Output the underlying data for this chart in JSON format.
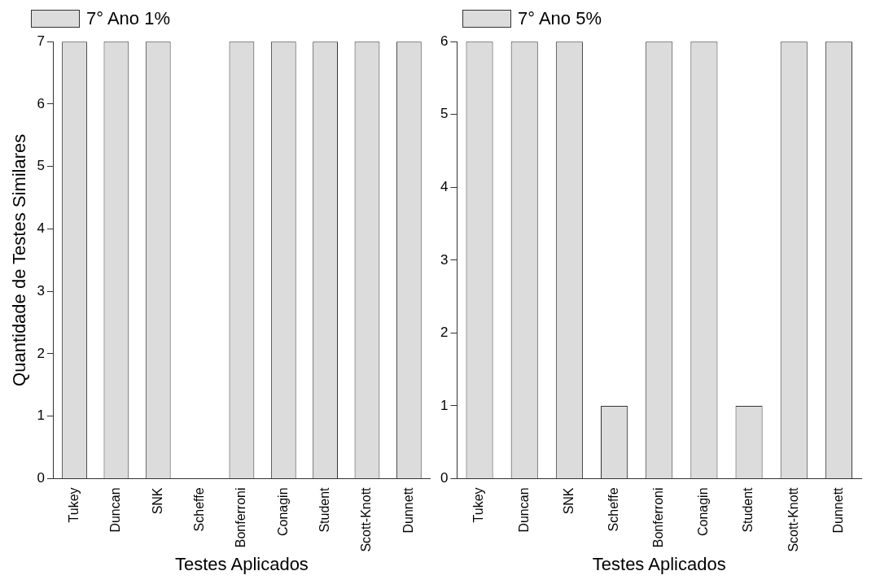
{
  "chart_data": [
    {
      "type": "bar",
      "xlabel": "Testes Aplicados",
      "ylabel": "Quantidade de Testes Similares",
      "categories": [
        "Tukey",
        "Duncan",
        "SNK",
        "Scheffe",
        "Bonferroni",
        "Conagin",
        "Student",
        "Scott-Knott",
        "Dunnett"
      ],
      "series": [
        {
          "name": "7° Ano 1%",
          "color": "#dcdcdc",
          "values": [
            7,
            7,
            7,
            0,
            7,
            7,
            7,
            7,
            7
          ]
        }
      ],
      "ylim": [
        0,
        7
      ],
      "yticks": [
        0,
        1,
        2,
        3,
        4,
        5,
        6,
        7
      ],
      "grid": false,
      "legend": "top left"
    },
    {
      "type": "bar",
      "xlabel": "Testes Aplicados",
      "categories": [
        "Tukey",
        "Duncan",
        "SNK",
        "Scheffe",
        "Bonferroni",
        "Conagin",
        "Student",
        "Scott-Knott",
        "Dunnett"
      ],
      "series": [
        {
          "name": "7° Ano 5%",
          "color": "#dcdcdc",
          "values": [
            6,
            6,
            6,
            1,
            6,
            6,
            1,
            6,
            6
          ]
        }
      ],
      "ylim": [
        0,
        6
      ],
      "yticks": [
        0,
        1,
        2,
        3,
        4,
        5,
        6
      ],
      "grid": false,
      "legend": "top left"
    }
  ]
}
